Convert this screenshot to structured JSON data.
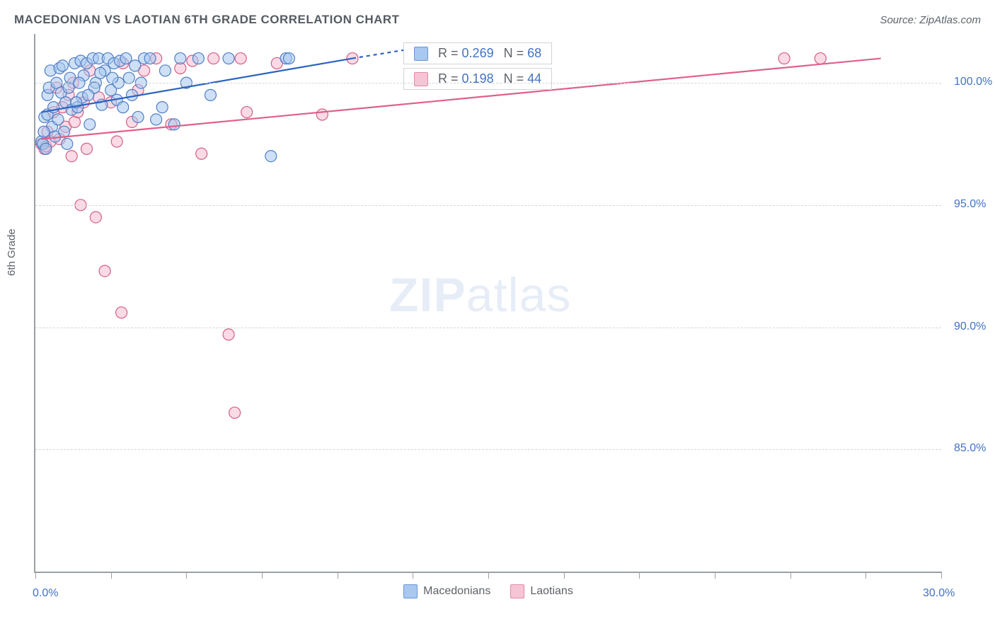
{
  "header": {
    "title": "MACEDONIAN VS LAOTIAN 6TH GRADE CORRELATION CHART",
    "source": "Source: ZipAtlas.com"
  },
  "ylabel": "6th Grade",
  "watermark": {
    "zip": "ZIP",
    "atlas": "atlas"
  },
  "chart": {
    "type": "scatter",
    "xlim": [
      0,
      30
    ],
    "ylim": [
      80,
      102
    ],
    "xtick_positions": [
      0,
      2.5,
      5,
      7.5,
      10,
      12.5,
      15,
      17.5,
      20,
      22.5,
      25,
      27.5,
      30
    ],
    "xtick_labels": {
      "0": "0.0%",
      "30": "30.0%"
    },
    "ytick_positions": [
      85,
      90,
      95,
      100
    ],
    "ytick_labels": [
      "85.0%",
      "90.0%",
      "95.0%",
      "100.0%"
    ],
    "background_color": "#ffffff",
    "grid_color": "#d2d6da",
    "axis_color": "#9aa0a6",
    "tick_label_color": "#4372c4",
    "marker_radius": 8,
    "marker_opacity": 0.55,
    "series": [
      {
        "name": "Macedonians",
        "fill": "#a6c6ee",
        "stroke": "#4f7ec5",
        "swatch_fill": "#a8c8f0",
        "swatch_border": "#6a95d2",
        "r": "0.269",
        "n": "68",
        "trend": {
          "x1": 0.2,
          "y1": 98.8,
          "x2": 10.5,
          "y2": 101.0,
          "color": "#2b62c0",
          "width": 2.2
        },
        "trend_dash": {
          "x1": 10.5,
          "y1": 101.0,
          "x2": 13.0,
          "y2": 101.5
        },
        "points": [
          [
            0.2,
            97.6
          ],
          [
            0.25,
            97.5
          ],
          [
            0.3,
            98.6
          ],
          [
            0.35,
            97.3
          ],
          [
            0.4,
            99.5
          ],
          [
            0.4,
            98.7
          ],
          [
            0.45,
            99.8
          ],
          [
            0.5,
            100.5
          ],
          [
            0.55,
            98.2
          ],
          [
            0.6,
            99.0
          ],
          [
            0.65,
            97.8
          ],
          [
            0.7,
            100.0
          ],
          [
            0.75,
            98.5
          ],
          [
            0.8,
            100.6
          ],
          [
            0.85,
            99.6
          ],
          [
            0.9,
            100.7
          ],
          [
            0.95,
            98.0
          ],
          [
            1.0,
            99.2
          ],
          [
            1.05,
            97.5
          ],
          [
            1.1,
            99.8
          ],
          [
            1.15,
            100.2
          ],
          [
            1.2,
            98.9
          ],
          [
            1.3,
            100.8
          ],
          [
            1.4,
            99.0
          ],
          [
            1.5,
            100.9
          ],
          [
            1.55,
            99.4
          ],
          [
            1.6,
            100.3
          ],
          [
            1.7,
            100.8
          ],
          [
            1.8,
            98.3
          ],
          [
            1.9,
            101.0
          ],
          [
            2.0,
            100.0
          ],
          [
            2.1,
            101.0
          ],
          [
            2.2,
            99.1
          ],
          [
            2.3,
            100.5
          ],
          [
            2.4,
            101.0
          ],
          [
            2.5,
            99.7
          ],
          [
            2.6,
            100.8
          ],
          [
            2.7,
            99.3
          ],
          [
            2.8,
            100.9
          ],
          [
            2.9,
            99.0
          ],
          [
            3.0,
            101.0
          ],
          [
            3.1,
            100.2
          ],
          [
            3.2,
            99.5
          ],
          [
            3.3,
            100.7
          ],
          [
            3.4,
            98.6
          ],
          [
            3.6,
            101.0
          ],
          [
            3.8,
            101.0
          ],
          [
            4.0,
            98.5
          ],
          [
            4.2,
            99.0
          ],
          [
            4.3,
            100.5
          ],
          [
            4.6,
            98.3
          ],
          [
            4.8,
            101.0
          ],
          [
            5.0,
            100.0
          ],
          [
            5.4,
            101.0
          ],
          [
            5.8,
            99.5
          ],
          [
            6.4,
            101.0
          ],
          [
            7.8,
            97.0
          ],
          [
            8.3,
            101.0
          ],
          [
            8.4,
            101.0
          ],
          [
            3.5,
            100.0
          ],
          [
            2.75,
            100.0
          ],
          [
            1.95,
            99.8
          ],
          [
            2.15,
            100.4
          ],
          [
            2.55,
            100.2
          ],
          [
            1.75,
            99.5
          ],
          [
            1.35,
            99.2
          ],
          [
            1.45,
            100.0
          ],
          [
            0.28,
            98.0
          ]
        ]
      },
      {
        "name": "Laotians",
        "fill": "#f6bdd0",
        "stroke": "#d65d87",
        "swatch_fill": "#f6c4d5",
        "swatch_border": "#df89a8",
        "r": "0.198",
        "n": "44",
        "trend": {
          "x1": 0.2,
          "y1": 97.7,
          "x2": 28.0,
          "y2": 101.0,
          "color": "#df6089",
          "width": 2.2
        },
        "points": [
          [
            0.2,
            97.5
          ],
          [
            0.3,
            97.3
          ],
          [
            0.35,
            97.4
          ],
          [
            0.4,
            98.0
          ],
          [
            0.5,
            97.6
          ],
          [
            0.6,
            98.8
          ],
          [
            0.7,
            99.8
          ],
          [
            0.8,
            97.7
          ],
          [
            0.9,
            99.0
          ],
          [
            1.0,
            98.2
          ],
          [
            1.1,
            99.5
          ],
          [
            1.2,
            97.0
          ],
          [
            1.25,
            100.0
          ],
          [
            1.3,
            98.4
          ],
          [
            1.4,
            98.8
          ],
          [
            1.5,
            95.0
          ],
          [
            1.6,
            99.2
          ],
          [
            1.7,
            97.3
          ],
          [
            1.8,
            100.5
          ],
          [
            2.0,
            94.5
          ],
          [
            2.1,
            99.4
          ],
          [
            2.3,
            92.3
          ],
          [
            2.5,
            99.2
          ],
          [
            2.7,
            97.6
          ],
          [
            2.85,
            90.6
          ],
          [
            2.9,
            100.8
          ],
          [
            3.2,
            98.4
          ],
          [
            3.4,
            99.7
          ],
          [
            3.6,
            100.5
          ],
          [
            4.0,
            101.0
          ],
          [
            4.5,
            98.3
          ],
          [
            4.8,
            100.6
          ],
          [
            5.2,
            100.9
          ],
          [
            5.5,
            97.1
          ],
          [
            5.9,
            101.0
          ],
          [
            6.4,
            89.7
          ],
          [
            6.6,
            86.5
          ],
          [
            6.8,
            101.0
          ],
          [
            7.0,
            98.8
          ],
          [
            8.0,
            100.8
          ],
          [
            9.5,
            98.7
          ],
          [
            10.5,
            101.0
          ],
          [
            24.8,
            101.0
          ],
          [
            26.0,
            101.0
          ]
        ]
      }
    ]
  },
  "legend": {
    "label1": "Macedonians",
    "label2": "Laotians"
  },
  "stats_labels": {
    "R": "R",
    "N": "N",
    "eq": "="
  }
}
